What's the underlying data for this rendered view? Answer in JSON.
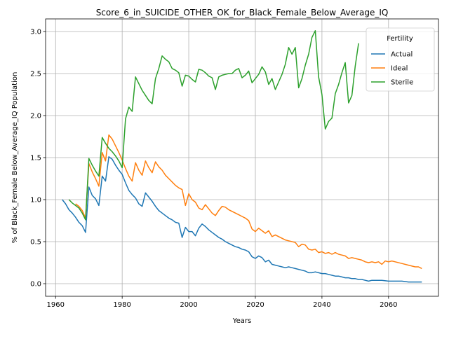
{
  "chart_data": {
    "type": "line",
    "title": "Score_6_in_SUICIDE_OTHER_OK_for_Black_Female_Below_Average_IQ",
    "xlabel": "Years",
    "ylabel": "% of Black_Female Below_Average_IQ Population",
    "xlim": [
      1957,
      2075
    ],
    "ylim": [
      -0.15,
      3.15
    ],
    "xticks": [
      1960,
      1980,
      2000,
      2020,
      2040,
      2060
    ],
    "yticks": [
      0.0,
      0.5,
      1.0,
      1.5,
      2.0,
      2.5,
      3.0
    ],
    "ytick_labels": [
      "0.0",
      "0.5",
      "1.0",
      "1.5",
      "2.0",
      "2.5",
      "3.0"
    ],
    "grid": true,
    "legend": {
      "title": "Fertility",
      "placement": "top-right"
    },
    "series": [
      {
        "name": "Actual",
        "color": "#1f77b4",
        "points": [
          [
            1962,
            1.0
          ],
          [
            1963,
            0.95
          ],
          [
            1964,
            0.88
          ],
          [
            1965,
            0.84
          ],
          [
            1966,
            0.79
          ],
          [
            1967,
            0.73
          ],
          [
            1968,
            0.69
          ],
          [
            1969,
            0.61
          ],
          [
            1970,
            1.15
          ],
          [
            1971,
            1.05
          ],
          [
            1972,
            1.01
          ],
          [
            1973,
            0.93
          ],
          [
            1974,
            1.28
          ],
          [
            1975,
            1.22
          ],
          [
            1976,
            1.51
          ],
          [
            1977,
            1.48
          ],
          [
            1978,
            1.41
          ],
          [
            1979,
            1.35
          ],
          [
            1980,
            1.3
          ],
          [
            1981,
            1.2
          ],
          [
            1982,
            1.11
          ],
          [
            1983,
            1.06
          ],
          [
            1984,
            1.02
          ],
          [
            1985,
            0.95
          ],
          [
            1986,
            0.92
          ],
          [
            1987,
            1.08
          ],
          [
            1988,
            1.03
          ],
          [
            1989,
            0.98
          ],
          [
            1990,
            0.92
          ],
          [
            1991,
            0.87
          ],
          [
            1992,
            0.84
          ],
          [
            1993,
            0.81
          ],
          [
            1994,
            0.78
          ],
          [
            1995,
            0.76
          ],
          [
            1996,
            0.73
          ],
          [
            1997,
            0.72
          ],
          [
            1998,
            0.55
          ],
          [
            1999,
            0.67
          ],
          [
            2000,
            0.62
          ],
          [
            2001,
            0.62
          ],
          [
            2002,
            0.57
          ],
          [
            2003,
            0.66
          ],
          [
            2004,
            0.71
          ],
          [
            2005,
            0.68
          ],
          [
            2006,
            0.64
          ],
          [
            2007,
            0.61
          ],
          [
            2008,
            0.58
          ],
          [
            2009,
            0.55
          ],
          [
            2010,
            0.53
          ],
          [
            2011,
            0.5
          ],
          [
            2012,
            0.48
          ],
          [
            2013,
            0.46
          ],
          [
            2014,
            0.44
          ],
          [
            2015,
            0.43
          ],
          [
            2016,
            0.41
          ],
          [
            2017,
            0.4
          ],
          [
            2018,
            0.38
          ],
          [
            2019,
            0.32
          ],
          [
            2020,
            0.3
          ],
          [
            2021,
            0.33
          ],
          [
            2022,
            0.31
          ],
          [
            2023,
            0.26
          ],
          [
            2024,
            0.28
          ],
          [
            2025,
            0.23
          ],
          [
            2026,
            0.22
          ],
          [
            2027,
            0.21
          ],
          [
            2028,
            0.2
          ],
          [
            2029,
            0.19
          ],
          [
            2030,
            0.2
          ],
          [
            2031,
            0.19
          ],
          [
            2032,
            0.18
          ],
          [
            2033,
            0.17
          ],
          [
            2034,
            0.16
          ],
          [
            2035,
            0.15
          ],
          [
            2036,
            0.13
          ],
          [
            2037,
            0.13
          ],
          [
            2038,
            0.14
          ],
          [
            2039,
            0.13
          ],
          [
            2040,
            0.12
          ],
          [
            2041,
            0.12
          ],
          [
            2042,
            0.11
          ],
          [
            2043,
            0.1
          ],
          [
            2044,
            0.09
          ],
          [
            2045,
            0.09
          ],
          [
            2046,
            0.08
          ],
          [
            2047,
            0.07
          ],
          [
            2048,
            0.07
          ],
          [
            2049,
            0.06
          ],
          [
            2050,
            0.06
          ],
          [
            2051,
            0.05
          ],
          [
            2052,
            0.05
          ],
          [
            2053,
            0.04
          ],
          [
            2054,
            0.03
          ],
          [
            2055,
            0.04
          ],
          [
            2056,
            0.04
          ],
          [
            2057,
            0.04
          ],
          [
            2058,
            0.04
          ],
          [
            2060,
            0.03
          ],
          [
            2062,
            0.03
          ],
          [
            2064,
            0.03
          ],
          [
            2066,
            0.02
          ],
          [
            2068,
            0.02
          ],
          [
            2070,
            0.02
          ]
        ]
      },
      {
        "name": "Ideal",
        "color": "#ff7f0e",
        "points": [
          [
            1966,
            0.95
          ],
          [
            1967,
            0.92
          ],
          [
            1968,
            0.87
          ],
          [
            1969,
            0.78
          ],
          [
            1970,
            1.43
          ],
          [
            1971,
            1.33
          ],
          [
            1972,
            1.25
          ],
          [
            1973,
            1.16
          ],
          [
            1974,
            1.56
          ],
          [
            1975,
            1.46
          ],
          [
            1976,
            1.77
          ],
          [
            1977,
            1.72
          ],
          [
            1978,
            1.64
          ],
          [
            1979,
            1.56
          ],
          [
            1980,
            1.47
          ],
          [
            1981,
            1.37
          ],
          [
            1982,
            1.28
          ],
          [
            1983,
            1.22
          ],
          [
            1984,
            1.44
          ],
          [
            1985,
            1.35
          ],
          [
            1986,
            1.29
          ],
          [
            1987,
            1.46
          ],
          [
            1988,
            1.38
          ],
          [
            1989,
            1.32
          ],
          [
            1990,
            1.45
          ],
          [
            1991,
            1.39
          ],
          [
            1992,
            1.35
          ],
          [
            1993,
            1.29
          ],
          [
            1994,
            1.25
          ],
          [
            1995,
            1.21
          ],
          [
            1996,
            1.17
          ],
          [
            1997,
            1.14
          ],
          [
            1998,
            1.12
          ],
          [
            1999,
            0.93
          ],
          [
            2000,
            1.07
          ],
          [
            2001,
            1.0
          ],
          [
            2002,
            0.97
          ],
          [
            2003,
            0.9
          ],
          [
            2004,
            0.88
          ],
          [
            2005,
            0.94
          ],
          [
            2006,
            0.89
          ],
          [
            2007,
            0.84
          ],
          [
            2008,
            0.81
          ],
          [
            2009,
            0.87
          ],
          [
            2010,
            0.92
          ],
          [
            2011,
            0.91
          ],
          [
            2012,
            0.88
          ],
          [
            2013,
            0.86
          ],
          [
            2014,
            0.84
          ],
          [
            2015,
            0.82
          ],
          [
            2016,
            0.8
          ],
          [
            2017,
            0.78
          ],
          [
            2018,
            0.75
          ],
          [
            2019,
            0.65
          ],
          [
            2020,
            0.62
          ],
          [
            2021,
            0.66
          ],
          [
            2022,
            0.63
          ],
          [
            2023,
            0.6
          ],
          [
            2024,
            0.63
          ],
          [
            2025,
            0.56
          ],
          [
            2026,
            0.58
          ],
          [
            2027,
            0.56
          ],
          [
            2028,
            0.54
          ],
          [
            2029,
            0.52
          ],
          [
            2030,
            0.51
          ],
          [
            2031,
            0.5
          ],
          [
            2032,
            0.49
          ],
          [
            2033,
            0.44
          ],
          [
            2034,
            0.47
          ],
          [
            2035,
            0.46
          ],
          [
            2036,
            0.41
          ],
          [
            2037,
            0.4
          ],
          [
            2038,
            0.41
          ],
          [
            2039,
            0.37
          ],
          [
            2040,
            0.38
          ],
          [
            2041,
            0.36
          ],
          [
            2042,
            0.37
          ],
          [
            2043,
            0.35
          ],
          [
            2044,
            0.37
          ],
          [
            2045,
            0.35
          ],
          [
            2046,
            0.34
          ],
          [
            2047,
            0.33
          ],
          [
            2048,
            0.3
          ],
          [
            2049,
            0.31
          ],
          [
            2050,
            0.3
          ],
          [
            2051,
            0.29
          ],
          [
            2052,
            0.28
          ],
          [
            2053,
            0.26
          ],
          [
            2054,
            0.25
          ],
          [
            2055,
            0.26
          ],
          [
            2056,
            0.25
          ],
          [
            2057,
            0.26
          ],
          [
            2058,
            0.23
          ],
          [
            2059,
            0.27
          ],
          [
            2060,
            0.26
          ],
          [
            2061,
            0.27
          ],
          [
            2062,
            0.26
          ],
          [
            2064,
            0.24
          ],
          [
            2066,
            0.22
          ],
          [
            2068,
            0.2
          ],
          [
            2069,
            0.2
          ],
          [
            2070,
            0.18
          ]
        ]
      },
      {
        "name": "Sterile",
        "color": "#2ca02c",
        "points": [
          [
            1964,
            1.0
          ],
          [
            1965,
            0.96
          ],
          [
            1966,
            0.93
          ],
          [
            1967,
            0.9
          ],
          [
            1968,
            0.84
          ],
          [
            1969,
            0.76
          ],
          [
            1970,
            1.49
          ],
          [
            1971,
            1.41
          ],
          [
            1972,
            1.34
          ],
          [
            1973,
            1.28
          ],
          [
            1974,
            1.74
          ],
          [
            1975,
            1.67
          ],
          [
            1976,
            1.61
          ],
          [
            1977,
            1.57
          ],
          [
            1978,
            1.52
          ],
          [
            1979,
            1.46
          ],
          [
            1980,
            1.38
          ],
          [
            1981,
            1.96
          ],
          [
            1982,
            2.1
          ],
          [
            1983,
            2.05
          ],
          [
            1984,
            2.46
          ],
          [
            1985,
            2.38
          ],
          [
            1986,
            2.3
          ],
          [
            1987,
            2.24
          ],
          [
            1988,
            2.18
          ],
          [
            1989,
            2.14
          ],
          [
            1990,
            2.44
          ],
          [
            1991,
            2.56
          ],
          [
            1992,
            2.71
          ],
          [
            1993,
            2.67
          ],
          [
            1994,
            2.64
          ],
          [
            1995,
            2.56
          ],
          [
            1996,
            2.54
          ],
          [
            1997,
            2.51
          ],
          [
            1998,
            2.35
          ],
          [
            1999,
            2.48
          ],
          [
            2000,
            2.47
          ],
          [
            2001,
            2.43
          ],
          [
            2002,
            2.4
          ],
          [
            2003,
            2.55
          ],
          [
            2004,
            2.54
          ],
          [
            2005,
            2.51
          ],
          [
            2006,
            2.47
          ],
          [
            2007,
            2.45
          ],
          [
            2008,
            2.31
          ],
          [
            2009,
            2.46
          ],
          [
            2010,
            2.48
          ],
          [
            2011,
            2.49
          ],
          [
            2012,
            2.5
          ],
          [
            2013,
            2.5
          ],
          [
            2014,
            2.54
          ],
          [
            2015,
            2.56
          ],
          [
            2016,
            2.45
          ],
          [
            2017,
            2.48
          ],
          [
            2018,
            2.53
          ],
          [
            2019,
            2.39
          ],
          [
            2020,
            2.44
          ],
          [
            2021,
            2.49
          ],
          [
            2022,
            2.58
          ],
          [
            2023,
            2.52
          ],
          [
            2024,
            2.37
          ],
          [
            2025,
            2.44
          ],
          [
            2026,
            2.31
          ],
          [
            2027,
            2.4
          ],
          [
            2028,
            2.49
          ],
          [
            2029,
            2.61
          ],
          [
            2030,
            2.81
          ],
          [
            2031,
            2.73
          ],
          [
            2032,
            2.81
          ],
          [
            2033,
            2.33
          ],
          [
            2034,
            2.44
          ],
          [
            2035,
            2.6
          ],
          [
            2036,
            2.73
          ],
          [
            2037,
            2.93
          ],
          [
            2038,
            3.01
          ],
          [
            2039,
            2.46
          ],
          [
            2040,
            2.25
          ],
          [
            2041,
            1.84
          ],
          [
            2042,
            1.93
          ],
          [
            2043,
            1.97
          ],
          [
            2044,
            2.26
          ],
          [
            2045,
            2.37
          ],
          [
            2046,
            2.51
          ],
          [
            2047,
            2.63
          ],
          [
            2048,
            2.15
          ],
          [
            2049,
            2.24
          ],
          [
            2050,
            2.59
          ],
          [
            2051,
            2.86
          ]
        ]
      }
    ]
  }
}
